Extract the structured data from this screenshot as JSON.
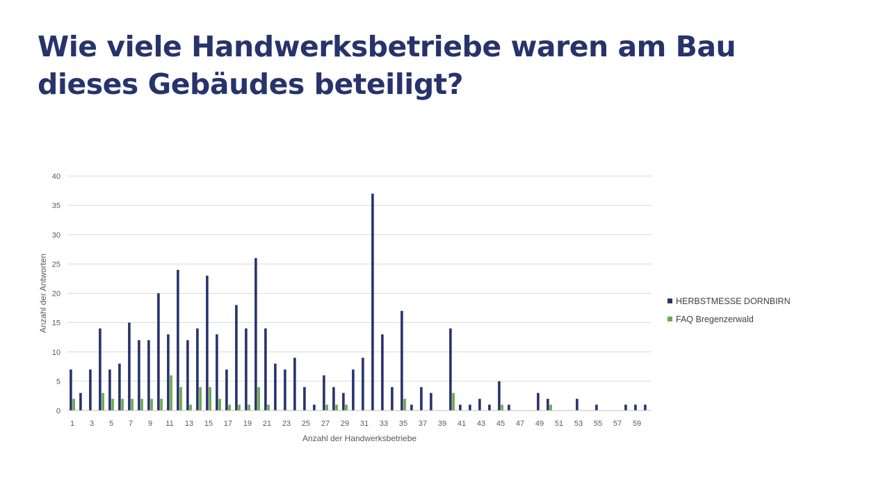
{
  "slide": {
    "title": "Wie viele Handwerksbetriebe waren am Bau dieses Gebäudes beteiligt?"
  },
  "colors": {
    "title": "#27336b",
    "series1": "#27336b",
    "series2": "#6aa84f",
    "grid": "#d9d9d9",
    "axis_text": "#595959"
  },
  "chart_data": {
    "type": "bar",
    "title": "",
    "xlabel": "Anzahl der Handwerksbetriebe",
    "ylabel": "Anzahl der Antworten",
    "ylim": [
      0,
      40
    ],
    "yticks": [
      0,
      5,
      10,
      15,
      20,
      25,
      30,
      35,
      40
    ],
    "grid": true,
    "legend_position": "right",
    "categories": [
      1,
      2,
      3,
      4,
      5,
      6,
      7,
      8,
      9,
      10,
      11,
      12,
      13,
      14,
      15,
      16,
      17,
      18,
      19,
      20,
      21,
      22,
      23,
      24,
      25,
      26,
      27,
      28,
      29,
      30,
      31,
      32,
      33,
      34,
      35,
      36,
      37,
      38,
      39,
      40,
      41,
      42,
      43,
      44,
      45,
      46,
      47,
      48,
      49,
      50,
      51,
      52,
      53,
      54,
      55,
      56,
      57,
      58,
      59,
      60
    ],
    "tick_labels": [
      "1",
      "3",
      "5",
      "7",
      "9",
      "11",
      "13",
      "15",
      "17",
      "19",
      "21",
      "23",
      "25",
      "27",
      "29",
      "31",
      "33",
      "35",
      "37",
      "39",
      "41",
      "43",
      "45",
      "47",
      "49",
      "51",
      "53",
      "55",
      "57",
      "59"
    ],
    "series": [
      {
        "name": "HERBSTMESSE DORNBIRN",
        "color": "#27336b",
        "values": [
          7,
          3,
          7,
          14,
          7,
          8,
          15,
          12,
          12,
          20,
          13,
          24,
          12,
          14,
          23,
          13,
          7,
          18,
          14,
          26,
          14,
          8,
          7,
          9,
          4,
          1,
          6,
          4,
          3,
          7,
          9,
          37,
          13,
          4,
          17,
          1,
          4,
          3,
          0,
          14,
          1,
          1,
          2,
          1,
          5,
          1,
          0,
          0,
          3,
          2,
          0,
          0,
          2,
          0,
          1,
          0,
          0,
          1,
          1,
          1
        ]
      },
      {
        "name": "FAQ Bregenzerwald",
        "color": "#6aa84f",
        "values": [
          2,
          0,
          0,
          3,
          2,
          2,
          2,
          2,
          2,
          2,
          6,
          4,
          1,
          4,
          4,
          2,
          1,
          1,
          1,
          4,
          1,
          0,
          0,
          0,
          0,
          0,
          1,
          1,
          1,
          0,
          0,
          0,
          0,
          0,
          2,
          0,
          0,
          0,
          0,
          3,
          0,
          0,
          0,
          0,
          1,
          0,
          0,
          0,
          0,
          1,
          0,
          0,
          0,
          0,
          0,
          0,
          0,
          0,
          0,
          0
        ]
      }
    ]
  }
}
